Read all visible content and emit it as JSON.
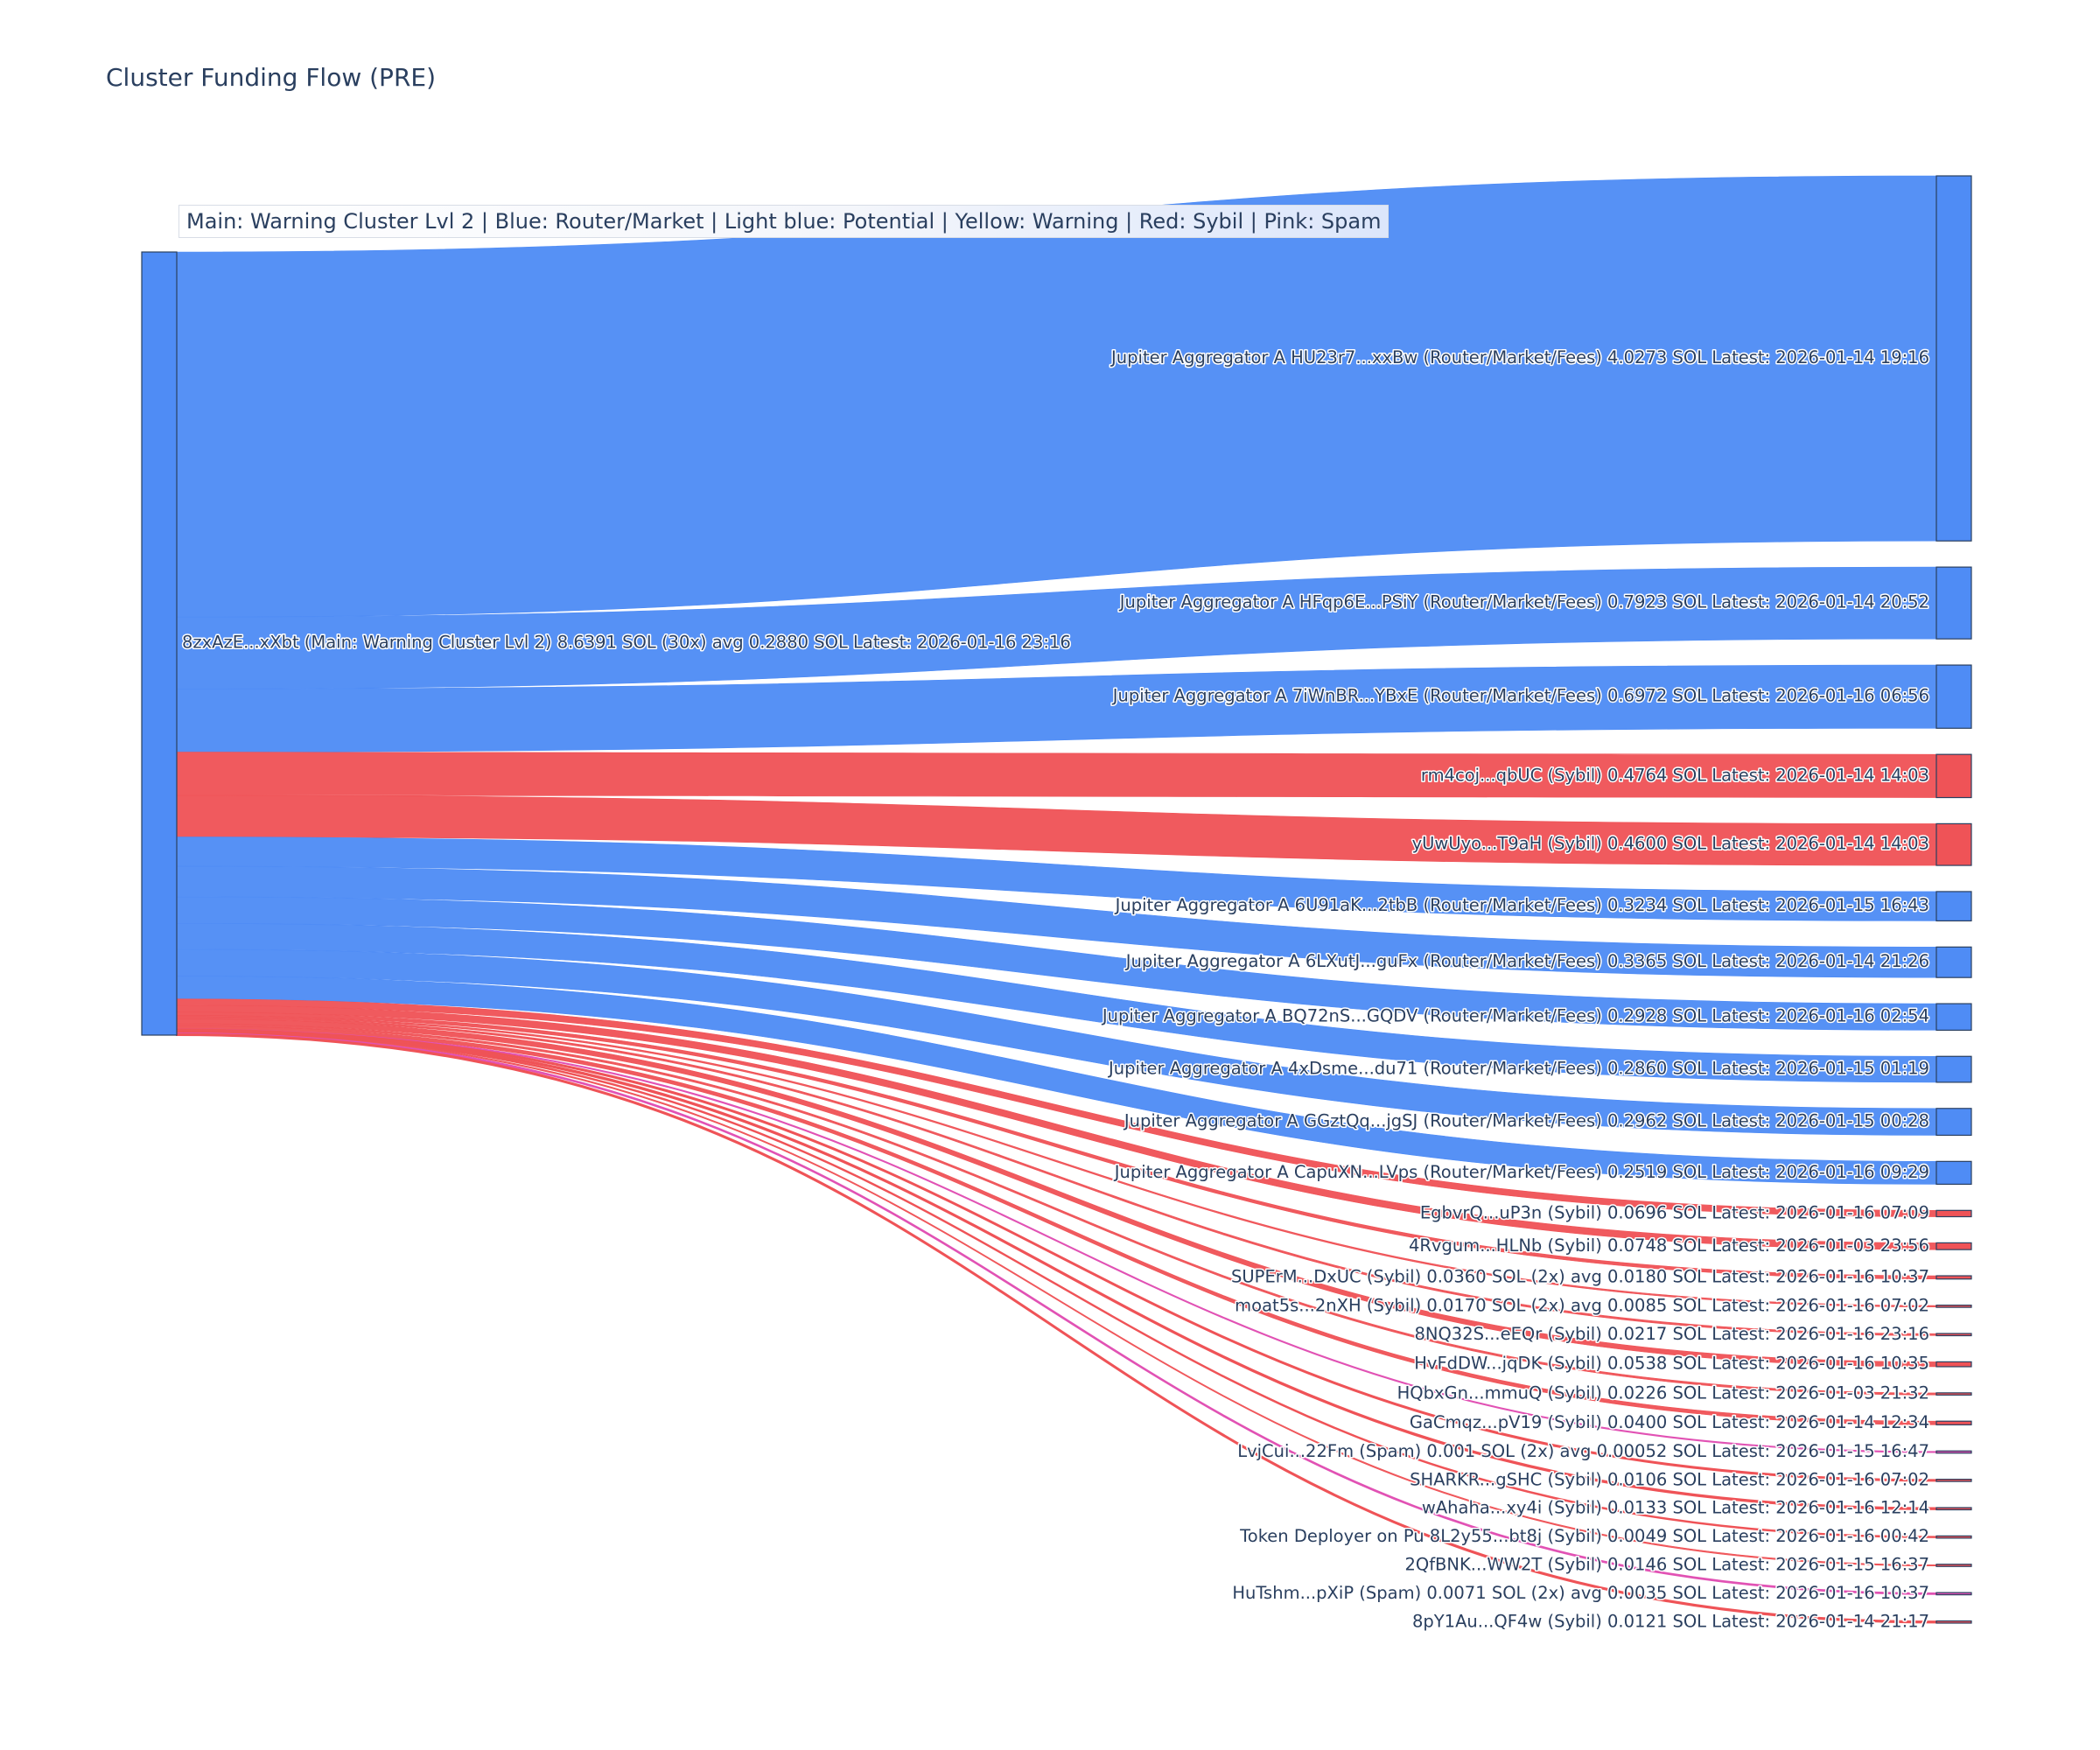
{
  "title": "Cluster Funding Flow (PRE)",
  "legend": "Main: Warning Cluster Lvl 2  |  Blue: Router/Market | Light blue: Potential | Yellow: Warning | Red: Sybil | Pink: Spam",
  "colors": {
    "router": "#4f8cf5",
    "sybil": "#ef5357",
    "spam": "#e152b4",
    "potential": "#9cc3fa",
    "warning": "#f5d142"
  },
  "chart_data": {
    "type": "sankey",
    "source": {
      "label": "8zxAzE...xXbt (Main: Warning Cluster Lvl 2) 8.6391 SOL (30x) avg 0.2880 SOL Latest: 2026-01-16 23:16",
      "value": 8.6391,
      "category": "router"
    },
    "targets": [
      {
        "label": "Jupiter Aggregator A HU23r7...xxBw (Router/Market/Fees) 4.0273 SOL Latest: 2026-01-14 19:16",
        "value": 4.0273,
        "category": "router"
      },
      {
        "label": "Jupiter Aggregator A HFqp6E...PSiY (Router/Market/Fees) 0.7923 SOL Latest: 2026-01-14 20:52",
        "value": 0.7923,
        "category": "router"
      },
      {
        "label": "Jupiter Aggregator A 7iWnBR...YBxE (Router/Market/Fees) 0.6972 SOL Latest: 2026-01-16 06:56",
        "value": 0.6972,
        "category": "router"
      },
      {
        "label": "rm4coj...qbUC (Sybil) 0.4764 SOL Latest: 2026-01-14 14:03",
        "value": 0.4764,
        "category": "sybil"
      },
      {
        "label": "yUwUyo...T9aH (Sybil) 0.4600 SOL Latest: 2026-01-14 14:03",
        "value": 0.46,
        "category": "sybil"
      },
      {
        "label": "Jupiter Aggregator A 6U91aK...2tbB (Router/Market/Fees) 0.3234 SOL Latest: 2026-01-15 16:43",
        "value": 0.3234,
        "category": "router"
      },
      {
        "label": "Jupiter Aggregator A 6LXutJ...guFx (Router/Market/Fees) 0.3365 SOL Latest: 2026-01-14 21:26",
        "value": 0.3365,
        "category": "router"
      },
      {
        "label": "Jupiter Aggregator A BQ72nS...GQDV (Router/Market/Fees) 0.2928 SOL Latest: 2026-01-16 02:54",
        "value": 0.2928,
        "category": "router"
      },
      {
        "label": "Jupiter Aggregator A 4xDsme...du71 (Router/Market/Fees) 0.2860 SOL Latest: 2026-01-15 01:19",
        "value": 0.286,
        "category": "router"
      },
      {
        "label": "Jupiter Aggregator A GGztQq...jgSJ (Router/Market/Fees) 0.2962 SOL Latest: 2026-01-15 00:28",
        "value": 0.2962,
        "category": "router"
      },
      {
        "label": "Jupiter Aggregator A CapuXN...LVps (Router/Market/Fees) 0.2519 SOL Latest: 2026-01-16 09:29",
        "value": 0.2519,
        "category": "router"
      },
      {
        "label": "EgbvrQ...uP3n (Sybil) 0.0696 SOL Latest: 2026-01-16 07:09",
        "value": 0.0696,
        "category": "sybil"
      },
      {
        "label": "4Rvgum...HLNb (Sybil) 0.0748 SOL Latest: 2026-01-03 23:56",
        "value": 0.0748,
        "category": "sybil"
      },
      {
        "label": "SUPErM...DxUC (Sybil) 0.0360 SOL (2x) avg 0.0180 SOL Latest: 2026-01-16 10:37",
        "value": 0.036,
        "category": "sybil"
      },
      {
        "label": "moat5s...2nXH (Sybil) 0.0170 SOL (2x) avg 0.0085 SOL Latest: 2026-01-16 07:02",
        "value": 0.017,
        "category": "sybil"
      },
      {
        "label": "8NQ32S...eEQr (Sybil) 0.0217 SOL Latest: 2026-01-16 23:16",
        "value": 0.0217,
        "category": "sybil"
      },
      {
        "label": "HvFdDW...jqDK (Sybil) 0.0538 SOL Latest: 2026-01-16 10:35",
        "value": 0.0538,
        "category": "sybil"
      },
      {
        "label": "HQbxGn...mmuQ (Sybil) 0.0226 SOL Latest: 2026-01-03 21:32",
        "value": 0.0226,
        "category": "sybil"
      },
      {
        "label": "GaCmqz...pV19 (Sybil) 0.0400 SOL Latest: 2026-01-14 12:34",
        "value": 0.04,
        "category": "sybil"
      },
      {
        "label": "LvjCui...22Fm (Spam) 0.001 SOL (2x) avg 0.00052 SOL Latest: 2026-01-15 16:47",
        "value": 0.001,
        "category": "spam"
      },
      {
        "label": "SHARKR...gSHC (Sybil) 0.0106 SOL Latest: 2026-01-16 07:02",
        "value": 0.0106,
        "category": "sybil"
      },
      {
        "label": "wAhaha...xy4i (Sybil) 0.0133 SOL Latest: 2026-01-16 12:14",
        "value": 0.0133,
        "category": "sybil"
      },
      {
        "label": "Token Deployer on Pu 8L2y55...bt8j (Sybil) 0.0049 SOL Latest: 2026-01-16 00:42",
        "value": 0.0049,
        "category": "sybil"
      },
      {
        "label": "2QfBNK...WW2T (Sybil) 0.0146 SOL Latest: 2026-01-15 16:37",
        "value": 0.0146,
        "category": "sybil"
      },
      {
        "label": "HuTshm...pXiP (Spam) 0.0071 SOL (2x) avg 0.0035 SOL Latest: 2026-01-16 10:37",
        "value": 0.0071,
        "category": "spam"
      },
      {
        "label": "8pY1Au...QF4w (Sybil) 0.0121 SOL Latest: 2026-01-14 21:17",
        "value": 0.0121,
        "category": "sybil"
      }
    ]
  }
}
